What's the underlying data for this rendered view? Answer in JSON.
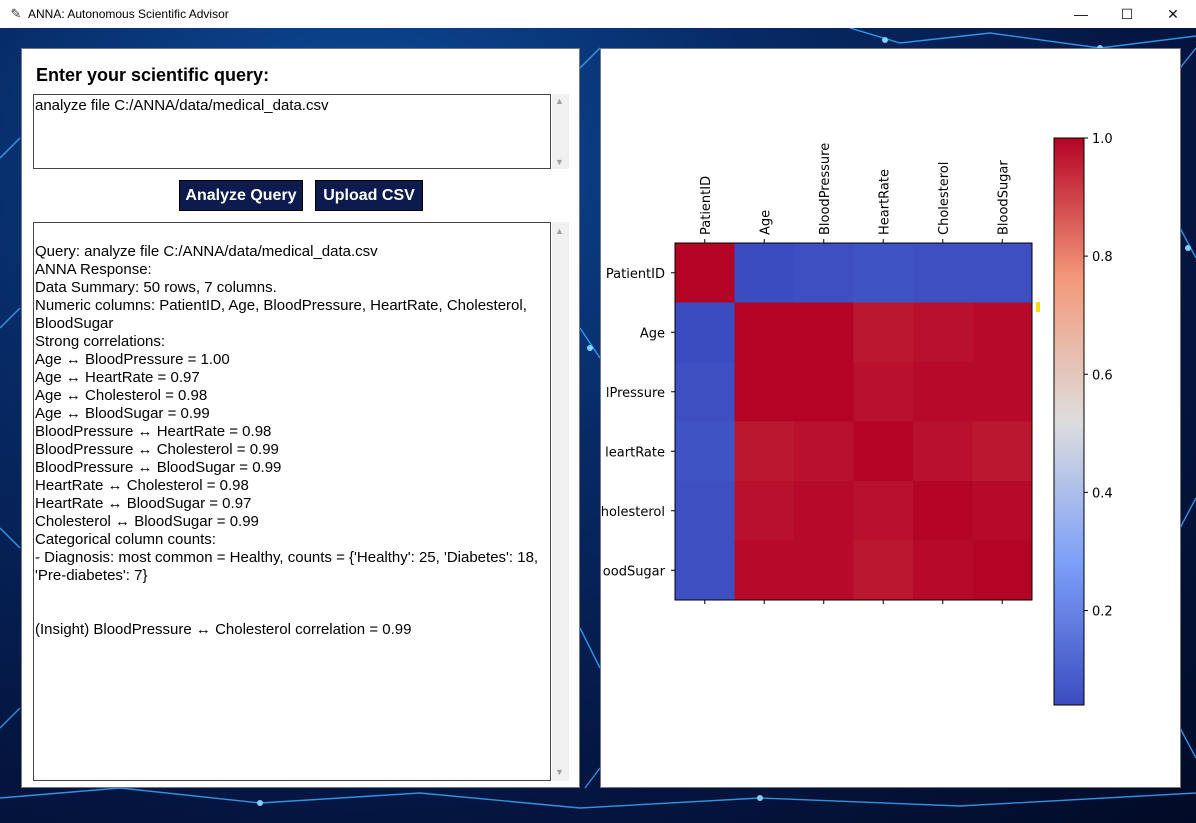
{
  "window": {
    "title": "ANNA: Autonomous Scientific Advisor",
    "app_icon": "feather-icon",
    "minimize": "—",
    "maximize": "☐",
    "close": "✕"
  },
  "query": {
    "label": "Enter your scientific query:",
    "value": "analyze file C:/ANNA/data/medical_data.csv"
  },
  "buttons": {
    "analyze": "Analyze Query",
    "upload": "Upload CSV"
  },
  "output": {
    "lines": [
      "Query: analyze file C:/ANNA/data/medical_data.csv",
      "ANNA Response:",
      "Data Summary: 50 rows, 7 columns.",
      "Numeric columns: PatientID, Age, BloodPressure, HeartRate, Cholesterol, BloodSugar",
      "Strong correlations:",
      "Age ↔ BloodPressure = 1.00",
      "Age ↔ HeartRate = 0.97",
      "Age ↔ Cholesterol = 0.98",
      "Age ↔ BloodSugar = 0.99",
      "BloodPressure ↔ HeartRate = 0.98",
      "BloodPressure ↔ Cholesterol = 0.99",
      "BloodPressure ↔ BloodSugar = 0.99",
      "HeartRate ↔ Cholesterol = 0.98",
      "HeartRate ↔ BloodSugar = 0.97",
      "Cholesterol ↔ BloodSugar = 0.99",
      "Categorical column counts:",
      "- Diagnosis: most common = Healthy, counts = {'Healthy': 25, 'Diabetes': 18, 'Pre-diabetes': 7}",
      "",
      "",
      "(Insight) BloodPressure ↔ Cholesterol correlation = 0.99"
    ]
  },
  "chart_data": {
    "type": "heatmap",
    "columns": [
      "PatientID",
      "Age",
      "BloodPressure",
      "HeartRate",
      "Cholesterol",
      "BloodSugar"
    ],
    "rows": [
      "PatientID",
      "Age",
      "BloodPressure",
      "HeartRate",
      "Cholesterol",
      "BloodSugar"
    ],
    "row_labels_visible": [
      "PatientID",
      "Age",
      "lPressure",
      "leartRate",
      "holesterol",
      "oodSugar"
    ],
    "values": [
      [
        1.0,
        0.04,
        0.05,
        0.06,
        0.05,
        0.05
      ],
      [
        0.04,
        1.0,
        1.0,
        0.97,
        0.98,
        0.99
      ],
      [
        0.05,
        1.0,
        1.0,
        0.98,
        0.99,
        0.99
      ],
      [
        0.06,
        0.97,
        0.98,
        1.0,
        0.98,
        0.97
      ],
      [
        0.05,
        0.98,
        0.99,
        0.98,
        1.0,
        0.99
      ],
      [
        0.05,
        0.99,
        0.99,
        0.97,
        0.99,
        1.0
      ]
    ],
    "colormap": "coolwarm",
    "colorbar": {
      "range": [
        0.04,
        1.0
      ],
      "ticks": [
        "1.0",
        "0.8",
        "0.6",
        "0.4",
        "0.2"
      ]
    }
  }
}
